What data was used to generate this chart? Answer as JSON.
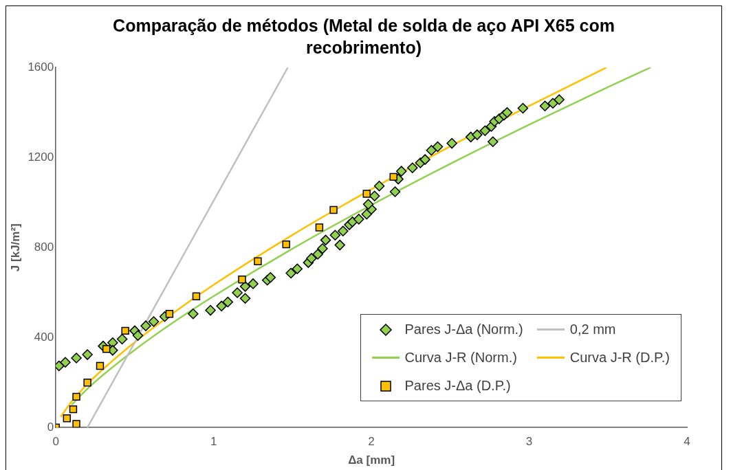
{
  "chart_data": {
    "type": "scatter",
    "title": "Comparação de métodos (Metal de solda de aço API X65 com recobrimento)",
    "xlabel": "Δa [mm]",
    "ylabel": "J [kJ/m²]",
    "xlim": [
      0,
      4
    ],
    "xticks": [
      0,
      1,
      2,
      3,
      4
    ],
    "ylim": [
      0,
      1600
    ],
    "yticks": [
      0,
      400,
      800,
      1200,
      1600
    ],
    "grid": false,
    "legend": "bottom right",
    "series": [
      {
        "name": "Pares J-Δa (Norm.)",
        "marker": "diamond",
        "color": "#92d050",
        "x": [
          0.02,
          0.06,
          0.13,
          0.2,
          0.3,
          0.36,
          0.36,
          0.42,
          0.5,
          0.52,
          0.57,
          0.62,
          0.69,
          0.87,
          0.98,
          1.05,
          1.09,
          1.15,
          1.2,
          1.2,
          1.25,
          1.34,
          1.36,
          1.49,
          1.53,
          1.6,
          1.62,
          1.66,
          1.69,
          1.71,
          1.77,
          1.8,
          1.82,
          1.86,
          1.88,
          1.92,
          1.97,
          2.0,
          1.98,
          2.02,
          2.05,
          2.15,
          2.17,
          2.19,
          2.26,
          2.31,
          2.34,
          2.38,
          2.42,
          2.51,
          2.63,
          2.67,
          2.72,
          2.76,
          2.78,
          2.81,
          2.84,
          2.86,
          2.77,
          2.96,
          3.1,
          3.15,
          3.19
        ],
        "values": [
          274,
          290,
          309,
          324,
          362,
          377,
          343,
          393,
          430,
          409,
          452,
          471,
          493,
          505,
          521,
          540,
          558,
          599,
          627,
          574,
          639,
          655,
          667,
          686,
          705,
          733,
          752,
          770,
          795,
          833,
          855,
          811,
          873,
          901,
          914,
          926,
          948,
          970,
          992,
          1029,
          1073,
          1048,
          1104,
          1139,
          1154,
          1176,
          1191,
          1232,
          1248,
          1263,
          1291,
          1301,
          1319,
          1338,
          1360,
          1372,
          1388,
          1400,
          1270,
          1419,
          1429,
          1441,
          1457
        ]
      },
      {
        "name": "0,2 mm",
        "type": "line",
        "marker": "none",
        "line_style": "solid",
        "color": "#c0c0c0",
        "x": [
          0.2,
          1.47
        ],
        "values": [
          0,
          1600
        ]
      },
      {
        "name": "Curva J-R (Norm.)",
        "type": "line",
        "marker": "none",
        "line_style": "solid",
        "color": "#92d050",
        "x": [
          0.1,
          0.2,
          0.3,
          0.5,
          0.75,
          1,
          1.5,
          2,
          2.5,
          3,
          3.5,
          3.77
        ],
        "values": [
          101,
          172,
          234,
          345,
          470,
          584,
          795,
          989,
          1172,
          1346,
          1513,
          1600
        ]
      },
      {
        "name": "Curva J-R (D.P.)",
        "type": "line",
        "marker": "none",
        "line_style": "solid",
        "color": "#ffc000",
        "x": [
          0.03,
          0.1,
          0.2,
          0.3,
          0.5,
          0.75,
          1,
          1.5,
          2,
          2.5,
          3,
          3.49
        ],
        "values": [
          47,
          115,
          193,
          260,
          379,
          512,
          634,
          856,
          1059,
          1250,
          1429,
          1600
        ]
      },
      {
        "name": "Pares J-Δa (D.P.)",
        "marker": "square",
        "color": "#ffc000",
        "x": [
          0,
          0.07,
          0.11,
          0.13,
          0.13,
          0.2,
          0.28,
          0.32,
          0.44,
          0.72,
          0.89,
          1.18,
          1.28,
          1.46,
          1.67,
          1.76,
          1.97,
          2.14
        ],
        "values": [
          0,
          41,
          81,
          137,
          16,
          200,
          274,
          349,
          430,
          505,
          583,
          658,
          739,
          814,
          889,
          967,
          1039,
          1114
        ]
      }
    ]
  }
}
